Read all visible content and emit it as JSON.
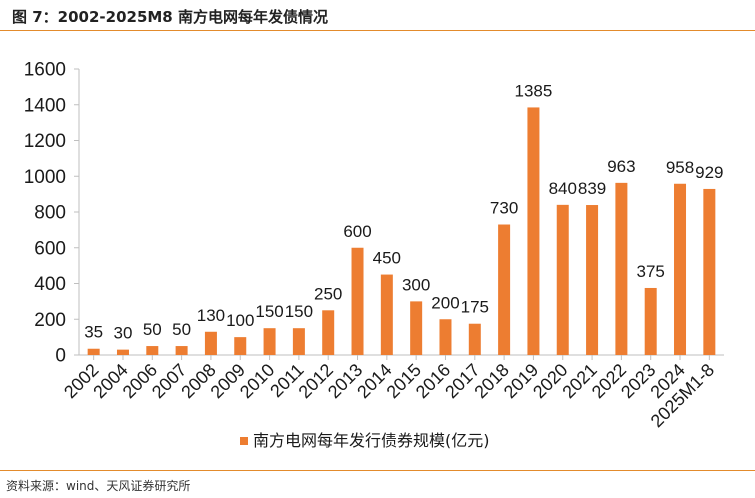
{
  "figure": {
    "title": "图 7：2002-2025M8 南方电网每年发债情况",
    "source": "资料来源：wind、天风证券研究所"
  },
  "colors": {
    "bar": "#ed7d31",
    "rule": "#e38b2c",
    "axis": "#bfbfbf"
  },
  "chart_data": {
    "type": "bar",
    "title": "",
    "xlabel": "",
    "ylabel": "",
    "ylim": [
      0,
      1600
    ],
    "yticks": [
      0,
      200,
      400,
      600,
      800,
      1000,
      1200,
      1400,
      1600
    ],
    "grid": false,
    "legend_position": "bottom",
    "categories": [
      "2002",
      "2004",
      "2006",
      "2007",
      "2008",
      "2009",
      "2010",
      "2011",
      "2012",
      "2013",
      "2014",
      "2015",
      "2016",
      "2017",
      "2018",
      "2019",
      "2020",
      "2021",
      "2022",
      "2023",
      "2024",
      "2025M1-8"
    ],
    "series": [
      {
        "name": "南方电网每年发行债券规模(亿元)",
        "values": [
          35,
          30,
          50,
          50,
          130,
          100,
          150,
          150,
          250,
          600,
          450,
          300,
          200,
          175,
          730,
          1385,
          840,
          839,
          963,
          375,
          958,
          929
        ],
        "data_labels": [
          "35",
          "30",
          "50",
          "50",
          "130",
          "100",
          "150",
          "150",
          "250",
          "600",
          "450",
          "300",
          "200",
          "175",
          "730",
          "1385",
          "840",
          "839",
          "963",
          "375",
          "958",
          "929"
        ]
      }
    ]
  }
}
